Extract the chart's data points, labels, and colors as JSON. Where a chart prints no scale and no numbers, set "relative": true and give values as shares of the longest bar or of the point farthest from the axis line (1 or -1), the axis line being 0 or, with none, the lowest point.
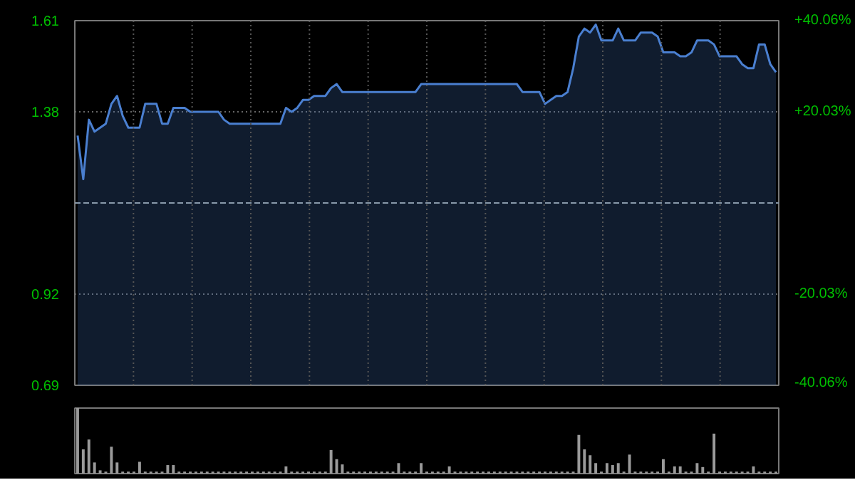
{
  "chart_data": [
    {
      "type": "area",
      "categories": [
        null,
        null,
        null,
        null,
        null,
        null,
        null,
        null,
        null,
        null,
        null,
        null,
        null,
        null,
        null,
        null,
        null,
        null,
        null,
        null,
        null,
        null,
        null,
        null,
        null,
        null,
        null,
        null,
        null,
        null,
        null,
        null,
        null,
        null,
        null,
        null,
        null,
        null,
        null,
        null,
        null,
        null,
        null,
        null,
        null,
        null,
        null,
        null,
        null,
        null,
        null,
        null,
        null,
        null,
        null,
        null,
        null,
        null,
        null,
        null,
        null,
        null,
        null,
        null,
        null,
        null,
        null,
        null,
        null,
        null,
        null,
        null,
        null,
        null,
        null,
        null,
        null,
        null,
        null,
        null,
        null,
        null,
        null,
        null,
        null,
        null,
        null,
        null,
        null,
        null,
        null,
        null,
        null,
        null,
        null,
        null,
        null,
        null,
        null,
        null,
        null,
        null,
        null,
        null,
        null,
        null,
        null,
        null,
        null,
        null,
        null,
        null,
        null,
        null,
        null,
        null,
        null,
        null,
        null,
        null,
        null,
        null,
        null,
        null,
        null
      ],
      "series": [
        {
          "color": "#4a7fd0",
          "values": [
            1.32,
            1.21,
            1.36,
            1.33,
            1.34,
            1.35,
            1.4,
            1.42,
            1.37,
            1.34,
            1.34,
            1.34,
            1.4,
            1.4,
            1.4,
            1.35,
            1.35,
            1.39,
            1.39,
            1.39,
            1.38,
            1.38,
            1.38,
            1.38,
            1.38,
            1.38,
            1.36,
            1.35,
            1.35,
            1.35,
            1.35,
            1.35,
            1.35,
            1.35,
            1.35,
            1.35,
            1.35,
            1.39,
            1.38,
            1.39,
            1.41,
            1.41,
            1.42,
            1.42,
            1.42,
            1.44,
            1.45,
            1.43,
            1.43,
            1.43,
            1.43,
            1.43,
            1.43,
            1.43,
            1.43,
            1.43,
            1.43,
            1.43,
            1.43,
            1.43,
            1.43,
            1.45,
            1.45,
            1.45,
            1.45,
            1.45,
            1.45,
            1.45,
            1.45,
            1.45,
            1.45,
            1.45,
            1.45,
            1.45,
            1.45,
            1.45,
            1.45,
            1.45,
            1.45,
            1.43,
            1.43,
            1.43,
            1.43,
            1.4,
            1.41,
            1.42,
            1.42,
            1.43,
            1.49,
            1.57,
            1.59,
            1.58,
            1.6,
            1.56,
            1.56,
            1.56,
            1.59,
            1.56,
            1.56,
            1.56,
            1.58,
            1.58,
            1.58,
            1.57,
            1.53,
            1.53,
            1.53,
            1.52,
            1.52,
            1.53,
            1.56,
            1.56,
            1.56,
            1.55,
            1.52,
            1.52,
            1.52,
            1.52,
            1.5,
            1.49,
            1.49,
            1.55,
            1.55,
            1.5,
            1.48
          ]
        }
      ],
      "ylim": [
        0.69,
        1.61
      ],
      "yticks": [
        0.69,
        0.92,
        1.38,
        1.61
      ],
      "y2lim": [
        -40.06,
        40.06
      ],
      "y2ticks": [
        {
          "value": -40.06,
          "label": "-40.06%"
        },
        {
          "value": -20.03,
          "label": "-20.03%"
        },
        {
          "value": 20.03,
          "label": "+20.03%"
        },
        {
          "value": 40.06,
          "label": "+40.06%"
        }
      ],
      "ref_lines": [
        {
          "axis": "y",
          "value": 1.15,
          "color": "#8899aa",
          "line_style": "dashed"
        }
      ],
      "grid": true,
      "tick_labels": "y"
    },
    {
      "type": "bar",
      "relative": true,
      "color": "#9a9a9a",
      "categories": [
        null,
        null,
        null,
        null,
        null,
        null,
        null,
        null,
        null,
        null,
        null,
        null,
        null,
        null,
        null,
        null,
        null,
        null,
        null,
        null,
        null,
        null,
        null,
        null,
        null,
        null,
        null,
        null,
        null,
        null,
        null,
        null,
        null,
        null,
        null,
        null,
        null,
        null,
        null,
        null,
        null,
        null,
        null,
        null,
        null,
        null,
        null,
        null,
        null,
        null,
        null,
        null,
        null,
        null,
        null,
        null,
        null,
        null,
        null,
        null,
        null,
        null,
        null,
        null,
        null,
        null,
        null,
        null,
        null,
        null,
        null,
        null,
        null,
        null,
        null,
        null,
        null,
        null,
        null,
        null,
        null,
        null,
        null,
        null,
        null,
        null,
        null,
        null,
        null,
        null,
        null,
        null,
        null,
        null,
        null,
        null,
        null,
        null,
        null,
        null,
        null,
        null,
        null,
        null,
        null,
        null,
        null,
        null,
        null,
        null,
        null,
        null,
        null,
        null,
        null,
        null,
        null,
        null,
        null,
        null,
        null,
        null,
        null,
        null,
        null
      ],
      "values": [
        1.0,
        0.37,
        0.52,
        0.17,
        0.05,
        0.03,
        0.41,
        0.17,
        0.03,
        0.03,
        0.03,
        0.18,
        0.03,
        0.03,
        0.03,
        0.03,
        0.13,
        0.13,
        0.03,
        0.03,
        0.03,
        0.03,
        0.03,
        0.03,
        0.03,
        0.03,
        0.03,
        0.03,
        0.03,
        0.03,
        0.03,
        0.03,
        0.03,
        0.03,
        0.03,
        0.03,
        0.03,
        0.11,
        0.03,
        0.03,
        0.03,
        0.03,
        0.03,
        0.03,
        0.03,
        0.36,
        0.22,
        0.14,
        0.03,
        0.03,
        0.03,
        0.03,
        0.03,
        0.03,
        0.03,
        0.03,
        0.03,
        0.16,
        0.03,
        0.03,
        0.03,
        0.16,
        0.03,
        0.03,
        0.03,
        0.03,
        0.11,
        0.03,
        0.03,
        0.03,
        0.03,
        0.03,
        0.03,
        0.03,
        0.03,
        0.03,
        0.03,
        0.03,
        0.03,
        0.03,
        0.03,
        0.03,
        0.03,
        0.03,
        0.03,
        0.03,
        0.03,
        0.03,
        0.03,
        0.59,
        0.37,
        0.28,
        0.16,
        0.03,
        0.16,
        0.13,
        0.16,
        0.03,
        0.29,
        0.03,
        0.03,
        0.03,
        0.03,
        0.03,
        0.22,
        0.03,
        0.11,
        0.11,
        0.03,
        0.03,
        0.16,
        0.1,
        0.03,
        0.61,
        0.03,
        0.03,
        0.03,
        0.03,
        0.03,
        0.03,
        0.11,
        0.03,
        0.03,
        0.03,
        0.03
      ],
      "tick_labels": false
    }
  ]
}
